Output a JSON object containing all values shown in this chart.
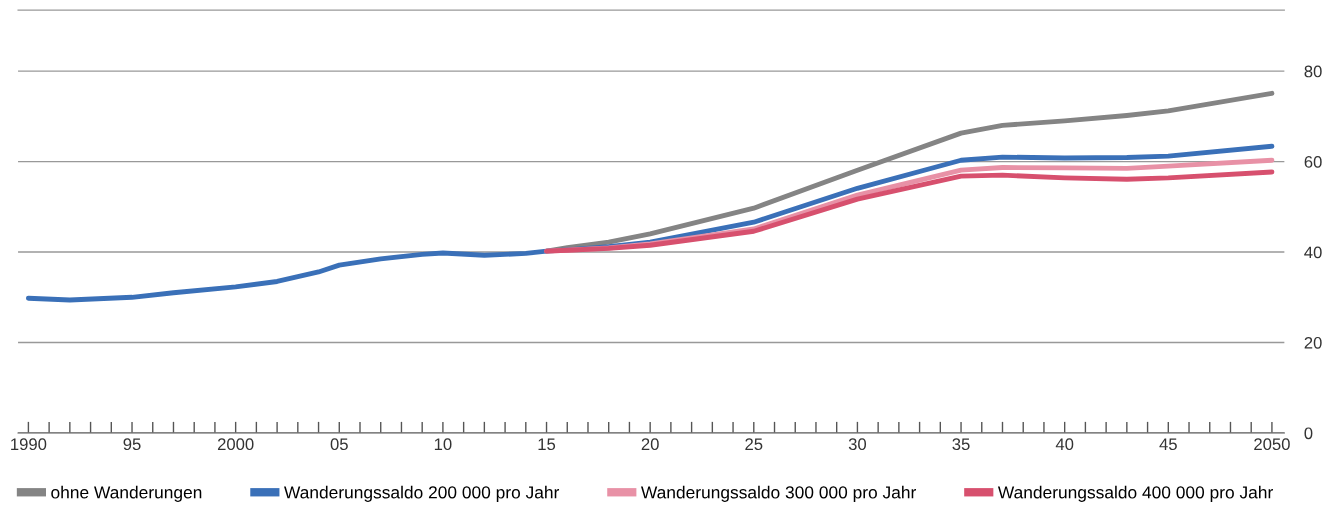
{
  "chart_data": {
    "type": "line",
    "x": [
      1990,
      1992,
      1995,
      1997,
      2000,
      2002,
      2004,
      2005,
      2007,
      2009,
      2010,
      2012,
      2014,
      2015,
      2016,
      2018,
      2020,
      2025,
      2030,
      2035,
      2037,
      2040,
      2043,
      2045,
      2050
    ],
    "series": [
      {
        "name": "ohne Wanderungen",
        "color": "#848484",
        "values": [
          null,
          null,
          null,
          null,
          null,
          null,
          null,
          null,
          null,
          null,
          null,
          null,
          null,
          40.2,
          41.0,
          42.2,
          44.0,
          49.7,
          58.1,
          66.3,
          68.0,
          69.0,
          70.2,
          71.2,
          75.1
        ]
      },
      {
        "name": "Wanderungssaldo 200 000 pro Jahr",
        "color": "#3a70b8",
        "values": [
          29.8,
          29.4,
          30.0,
          31.0,
          32.3,
          33.5,
          35.6,
          37.1,
          38.5,
          39.5,
          39.8,
          39.3,
          39.7,
          40.2,
          40.5,
          41.2,
          42.2,
          46.6,
          54.1,
          60.3,
          61.0,
          60.8,
          60.9,
          61.2,
          63.4
        ]
      },
      {
        "name": "Wanderungssaldo 300 000 pro Jahr",
        "color": "#e891a6",
        "values": [
          null,
          null,
          null,
          null,
          null,
          null,
          null,
          null,
          null,
          null,
          null,
          null,
          null,
          40.2,
          40.4,
          40.9,
          41.8,
          45.1,
          52.6,
          58.1,
          58.7,
          58.6,
          58.5,
          59.0,
          60.3
        ]
      },
      {
        "name": "Wanderungssaldo 400 000 pro Jahr",
        "color": "#d7506e",
        "values": [
          null,
          null,
          null,
          null,
          null,
          null,
          null,
          null,
          null,
          null,
          null,
          null,
          null,
          40.2,
          40.4,
          40.8,
          41.5,
          44.6,
          51.7,
          56.8,
          57.0,
          56.4,
          56.1,
          56.4,
          57.7
        ]
      }
    ],
    "xlim": [
      1989.5,
      2050.6
    ],
    "xticks": [
      {
        "value": 1990,
        "label": "1990"
      },
      {
        "value": 1991,
        "label": null
      },
      {
        "value": 1992,
        "label": null
      },
      {
        "value": 1993,
        "label": null
      },
      {
        "value": 1994,
        "label": null
      },
      {
        "value": 1995,
        "label": "95"
      },
      {
        "value": 1996,
        "label": null
      },
      {
        "value": 1997,
        "label": null
      },
      {
        "value": 1998,
        "label": null
      },
      {
        "value": 1999,
        "label": null
      },
      {
        "value": 2000,
        "label": "2000"
      },
      {
        "value": 2001,
        "label": null
      },
      {
        "value": 2002,
        "label": null
      },
      {
        "value": 2003,
        "label": null
      },
      {
        "value": 2004,
        "label": null
      },
      {
        "value": 2005,
        "label": "05"
      },
      {
        "value": 2006,
        "label": null
      },
      {
        "value": 2007,
        "label": null
      },
      {
        "value": 2008,
        "label": null
      },
      {
        "value": 2009,
        "label": null
      },
      {
        "value": 2010,
        "label": "10"
      },
      {
        "value": 2011,
        "label": null
      },
      {
        "value": 2012,
        "label": null
      },
      {
        "value": 2013,
        "label": null
      },
      {
        "value": 2014,
        "label": null
      },
      {
        "value": 2015,
        "label": "15"
      },
      {
        "value": 2016,
        "label": null
      },
      {
        "value": 2017,
        "label": null
      },
      {
        "value": 2018,
        "label": null
      },
      {
        "value": 2019,
        "label": null
      },
      {
        "value": 2020,
        "label": "20"
      },
      {
        "value": 2021,
        "label": null
      },
      {
        "value": 2022,
        "label": null
      },
      {
        "value": 2023,
        "label": null
      },
      {
        "value": 2024,
        "label": null
      },
      {
        "value": 2025,
        "label": "25"
      },
      {
        "value": 2026,
        "label": null
      },
      {
        "value": 2027,
        "label": null
      },
      {
        "value": 2028,
        "label": null
      },
      {
        "value": 2029,
        "label": null
      },
      {
        "value": 2030,
        "label": "30"
      },
      {
        "value": 2031,
        "label": null
      },
      {
        "value": 2032,
        "label": null
      },
      {
        "value": 2033,
        "label": null
      },
      {
        "value": 2034,
        "label": null
      },
      {
        "value": 2035,
        "label": "35"
      },
      {
        "value": 2036,
        "label": null
      },
      {
        "value": 2037,
        "label": null
      },
      {
        "value": 2038,
        "label": null
      },
      {
        "value": 2039,
        "label": null
      },
      {
        "value": 2040,
        "label": "40"
      },
      {
        "value": 2041,
        "label": null
      },
      {
        "value": 2042,
        "label": null
      },
      {
        "value": 2043,
        "label": null
      },
      {
        "value": 2044,
        "label": null
      },
      {
        "value": 2045,
        "label": "45"
      },
      {
        "value": 2046,
        "label": null
      },
      {
        "value": 2047,
        "label": null
      },
      {
        "value": 2048,
        "label": null
      },
      {
        "value": 2049,
        "label": null
      },
      {
        "value": 2050,
        "label": "2050"
      }
    ],
    "ylim": [
      0,
      93.5
    ],
    "yticks": [
      0,
      20,
      40,
      60,
      80
    ],
    "grid": "y",
    "legend": "bottom",
    "marker": "none",
    "line_style": "solid"
  }
}
